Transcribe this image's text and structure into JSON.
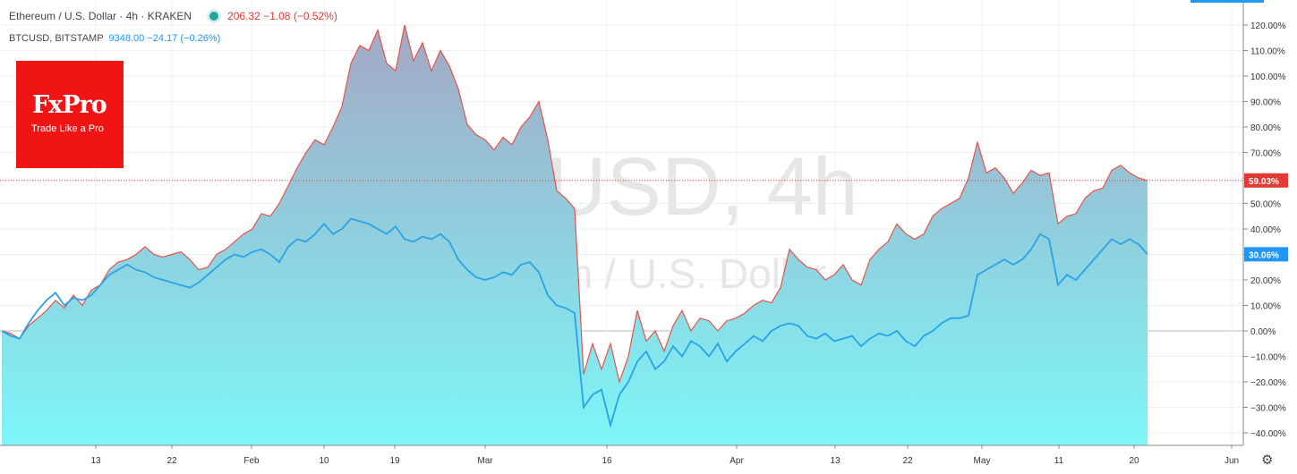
{
  "legend": {
    "eth_symbol": "Ethereum / U.S. Dollar · 4h · KRAKEN",
    "eth_values": "206.32 −1.08 (−0.52%)",
    "btc_symbol": "BTCUSD, BITSTAMP",
    "btc_values": "9348.00 −24.17 (−0.26%)"
  },
  "watermark": {
    "line1": "ETHUSD, 4h",
    "line2": "Ethereum / U.S. Dollar"
  },
  "logo": {
    "name": "FxPro",
    "tagline": "Trade Like a Pro"
  },
  "icons": {
    "settings": "gear-icon",
    "status": "status-dot-icon"
  },
  "colors": {
    "eth_line": "#e5534b",
    "btc_line": "#2aa3e6",
    "area_top": "#a3a8c4",
    "area_bottom": "#7df6f8",
    "last_line": "#e53935",
    "btc_label": "#2196f3"
  },
  "chart_data": {
    "type": "area",
    "y_unit": "%",
    "ylim": [
      -45,
      125
    ],
    "y_ticks": [
      "120.00%",
      "110.00%",
      "100.00%",
      "90.00%",
      "80.00%",
      "70.00%",
      "60.00%",
      "50.00%",
      "40.00%",
      "30.00%",
      "20.00%",
      "10.00%",
      "0.00%",
      "−10.00%",
      "−20.00%",
      "−30.00%",
      "−40.00%"
    ],
    "x_ticks": [
      "13",
      "22",
      "Feb",
      "10",
      "19",
      "Mar",
      "16",
      "Apr",
      "13",
      "22",
      "May",
      "11",
      "20",
      "Jun"
    ],
    "last_values": {
      "eth": "59.03%",
      "btc": "30.06%"
    },
    "grid": true,
    "series": [
      {
        "name": "ETHUSD",
        "values": [
          [
            0,
            0
          ],
          [
            0.5,
            -1
          ],
          [
            1,
            -3
          ],
          [
            1.5,
            2
          ],
          [
            2,
            5
          ],
          [
            2.5,
            8
          ],
          [
            3,
            12
          ],
          [
            3.5,
            9
          ],
          [
            4,
            14
          ],
          [
            4.5,
            10
          ],
          [
            5,
            16
          ],
          [
            5.5,
            18
          ],
          [
            6,
            24
          ],
          [
            6.5,
            27
          ],
          [
            7,
            28
          ],
          [
            7.5,
            30
          ],
          [
            8,
            33
          ],
          [
            8.5,
            30
          ],
          [
            9,
            29
          ],
          [
            9.5,
            30
          ],
          [
            10,
            31
          ],
          [
            10.5,
            28
          ],
          [
            11,
            24
          ],
          [
            11.5,
            25
          ],
          [
            12,
            30
          ],
          [
            12.5,
            32
          ],
          [
            13,
            35
          ],
          [
            13.5,
            38
          ],
          [
            14,
            40
          ],
          [
            14.5,
            46
          ],
          [
            15,
            45
          ],
          [
            15.5,
            50
          ],
          [
            16,
            57
          ],
          [
            16.5,
            64
          ],
          [
            17,
            70
          ],
          [
            17.5,
            75
          ],
          [
            18,
            73
          ],
          [
            18.5,
            80
          ],
          [
            19,
            88
          ],
          [
            19.5,
            105
          ],
          [
            20,
            112
          ],
          [
            20.5,
            110
          ],
          [
            21,
            118
          ],
          [
            21.5,
            105
          ],
          [
            22,
            102
          ],
          [
            22.5,
            120
          ],
          [
            23,
            106
          ],
          [
            23.5,
            113
          ],
          [
            24,
            102
          ],
          [
            24.5,
            110
          ],
          [
            25,
            104
          ],
          [
            25.5,
            95
          ],
          [
            26,
            81
          ],
          [
            26.5,
            77
          ],
          [
            27,
            75
          ],
          [
            27.5,
            71
          ],
          [
            28,
            76
          ],
          [
            28.5,
            73
          ],
          [
            29,
            80
          ],
          [
            29.5,
            84
          ],
          [
            30,
            90
          ],
          [
            30.5,
            75
          ],
          [
            31,
            55
          ],
          [
            31.5,
            52
          ],
          [
            32,
            48
          ],
          [
            32.5,
            -17
          ],
          [
            33,
            -5
          ],
          [
            33.5,
            -15
          ],
          [
            34,
            -5
          ],
          [
            34.5,
            -20
          ],
          [
            35,
            -10
          ],
          [
            35.5,
            8
          ],
          [
            36,
            -4
          ],
          [
            36.5,
            0
          ],
          [
            37,
            -8
          ],
          [
            37.5,
            2
          ],
          [
            38,
            8
          ],
          [
            38.5,
            0
          ],
          [
            39,
            5
          ],
          [
            39.5,
            4
          ],
          [
            40,
            0
          ],
          [
            40.5,
            4
          ],
          [
            41,
            5
          ],
          [
            41.5,
            7
          ],
          [
            42,
            10
          ],
          [
            42.5,
            12
          ],
          [
            43,
            11
          ],
          [
            43.5,
            17
          ],
          [
            44,
            32
          ],
          [
            44.5,
            28
          ],
          [
            45,
            25
          ],
          [
            45.5,
            24
          ],
          [
            46,
            20
          ],
          [
            46.5,
            22
          ],
          [
            47,
            26
          ],
          [
            47.5,
            20
          ],
          [
            48,
            18
          ],
          [
            48.5,
            28
          ],
          [
            49,
            32
          ],
          [
            49.5,
            35
          ],
          [
            50,
            42
          ],
          [
            50.5,
            38
          ],
          [
            51,
            36
          ],
          [
            51.5,
            38
          ],
          [
            52,
            45
          ],
          [
            52.5,
            48
          ],
          [
            53,
            50
          ],
          [
            53.5,
            52
          ],
          [
            54,
            60
          ],
          [
            54.5,
            74
          ],
          [
            55,
            62
          ],
          [
            55.5,
            64
          ],
          [
            56,
            60
          ],
          [
            56.5,
            54
          ],
          [
            57,
            58
          ],
          [
            57.5,
            63
          ],
          [
            58,
            61
          ],
          [
            58.5,
            62
          ],
          [
            59,
            42
          ],
          [
            59.5,
            45
          ],
          [
            60,
            46
          ],
          [
            60.5,
            52
          ],
          [
            61,
            55
          ],
          [
            61.5,
            56
          ],
          [
            62,
            63
          ],
          [
            62.5,
            65
          ],
          [
            63,
            62
          ],
          [
            63.5,
            60
          ],
          [
            64,
            59.03
          ]
        ]
      },
      {
        "name": "BTCUSD",
        "values": [
          [
            0,
            0
          ],
          [
            0.5,
            -2
          ],
          [
            1,
            -3
          ],
          [
            1.5,
            3
          ],
          [
            2,
            8
          ],
          [
            2.5,
            12
          ],
          [
            3,
            15
          ],
          [
            3.5,
            10
          ],
          [
            4,
            13
          ],
          [
            4.5,
            12
          ],
          [
            5,
            14
          ],
          [
            5.5,
            18
          ],
          [
            6,
            22
          ],
          [
            6.5,
            24
          ],
          [
            7,
            26
          ],
          [
            7.5,
            24
          ],
          [
            8,
            23
          ],
          [
            8.5,
            21
          ],
          [
            9,
            20
          ],
          [
            9.5,
            19
          ],
          [
            10,
            18
          ],
          [
            10.5,
            17
          ],
          [
            11,
            19
          ],
          [
            11.5,
            22
          ],
          [
            12,
            25
          ],
          [
            12.5,
            28
          ],
          [
            13,
            30
          ],
          [
            13.5,
            29
          ],
          [
            14,
            31
          ],
          [
            14.5,
            32
          ],
          [
            15,
            30
          ],
          [
            15.5,
            27
          ],
          [
            16,
            33
          ],
          [
            16.5,
            36
          ],
          [
            17,
            35
          ],
          [
            17.5,
            38
          ],
          [
            18,
            42
          ],
          [
            18.5,
            38
          ],
          [
            19,
            40
          ],
          [
            19.5,
            44
          ],
          [
            20,
            43
          ],
          [
            20.5,
            42
          ],
          [
            21,
            40
          ],
          [
            21.5,
            38
          ],
          [
            22,
            41
          ],
          [
            22.5,
            36
          ],
          [
            23,
            35
          ],
          [
            23.5,
            37
          ],
          [
            24,
            36
          ],
          [
            24.5,
            38
          ],
          [
            25,
            35
          ],
          [
            25.5,
            28
          ],
          [
            26,
            24
          ],
          [
            26.5,
            21
          ],
          [
            27,
            20
          ],
          [
            27.5,
            21
          ],
          [
            28,
            23
          ],
          [
            28.5,
            22
          ],
          [
            29,
            26
          ],
          [
            29.5,
            27
          ],
          [
            30,
            23
          ],
          [
            30.5,
            14
          ],
          [
            31,
            10
          ],
          [
            31.5,
            9
          ],
          [
            32,
            7
          ],
          [
            32.5,
            -30
          ],
          [
            33,
            -25
          ],
          [
            33.5,
            -23
          ],
          [
            34,
            -37
          ],
          [
            34.5,
            -25
          ],
          [
            35,
            -20
          ],
          [
            35.5,
            -12
          ],
          [
            36,
            -8
          ],
          [
            36.5,
            -15
          ],
          [
            37,
            -12
          ],
          [
            37.5,
            -6
          ],
          [
            38,
            -10
          ],
          [
            38.5,
            -4
          ],
          [
            39,
            -6
          ],
          [
            39.5,
            -10
          ],
          [
            40,
            -5
          ],
          [
            40.5,
            -12
          ],
          [
            41,
            -8
          ],
          [
            41.5,
            -5
          ],
          [
            42,
            -2
          ],
          [
            42.5,
            -4
          ],
          [
            43,
            0
          ],
          [
            43.5,
            2
          ],
          [
            44,
            3
          ],
          [
            44.5,
            2
          ],
          [
            45,
            -2
          ],
          [
            45.5,
            -3
          ],
          [
            46,
            -1
          ],
          [
            46.5,
            -4
          ],
          [
            47,
            -3
          ],
          [
            47.5,
            -2
          ],
          [
            48,
            -6
          ],
          [
            48.5,
            -3
          ],
          [
            49,
            -1
          ],
          [
            49.5,
            -2
          ],
          [
            50,
            0
          ],
          [
            50.5,
            -4
          ],
          [
            51,
            -6
          ],
          [
            51.5,
            -2
          ],
          [
            52,
            0
          ],
          [
            52.5,
            3
          ],
          [
            53,
            5
          ],
          [
            53.5,
            5
          ],
          [
            54,
            6
          ],
          [
            54.5,
            22
          ],
          [
            55,
            24
          ],
          [
            55.5,
            26
          ],
          [
            56,
            28
          ],
          [
            56.5,
            26
          ],
          [
            57,
            28
          ],
          [
            57.5,
            32
          ],
          [
            58,
            38
          ],
          [
            58.5,
            36
          ],
          [
            59,
            18
          ],
          [
            59.5,
            22
          ],
          [
            60,
            20
          ],
          [
            60.5,
            24
          ],
          [
            61,
            28
          ],
          [
            61.5,
            32
          ],
          [
            62,
            36
          ],
          [
            62.5,
            34
          ],
          [
            63,
            36
          ],
          [
            63.5,
            34
          ],
          [
            64,
            30.06
          ]
        ]
      }
    ]
  }
}
